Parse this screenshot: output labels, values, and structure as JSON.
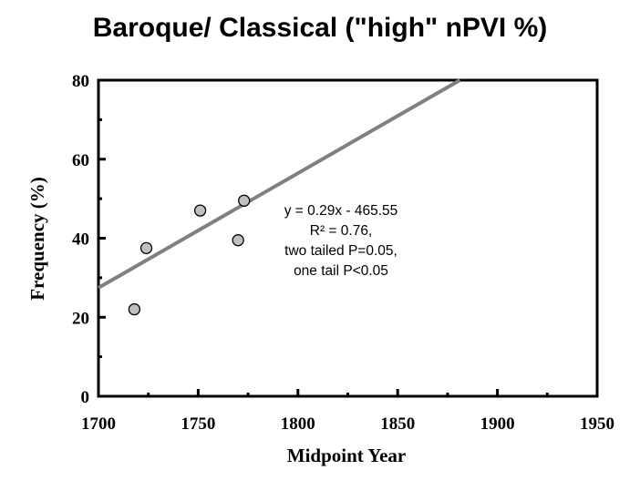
{
  "chart_data": {
    "type": "scatter",
    "title": "Baroque/ Classical  (\"high\" nPVI %)",
    "xlabel": "Midpoint Year",
    "ylabel": "Frequency (%)",
    "xlim": [
      1700,
      1950
    ],
    "ylim": [
      0,
      80
    ],
    "x_ticks": [
      1700,
      1750,
      1800,
      1850,
      1900,
      1950
    ],
    "y_ticks": [
      0,
      20,
      40,
      60,
      80
    ],
    "grid": false,
    "points": [
      {
        "x": 1718,
        "y": 22
      },
      {
        "x": 1724,
        "y": 37.5
      },
      {
        "x": 1751,
        "y": 47
      },
      {
        "x": 1770,
        "y": 39.5
      },
      {
        "x": 1773,
        "y": 49.5
      }
    ],
    "trendline": {
      "slope": 0.29,
      "intercept": -465.55,
      "color": "#808080"
    },
    "annotation": [
      "y = 0.29x - 465.55",
      "R² = 0.76,",
      "two tailed P=0.05,",
      "one tail  P<0.05"
    ],
    "marker_color": "#c0c0c0"
  }
}
